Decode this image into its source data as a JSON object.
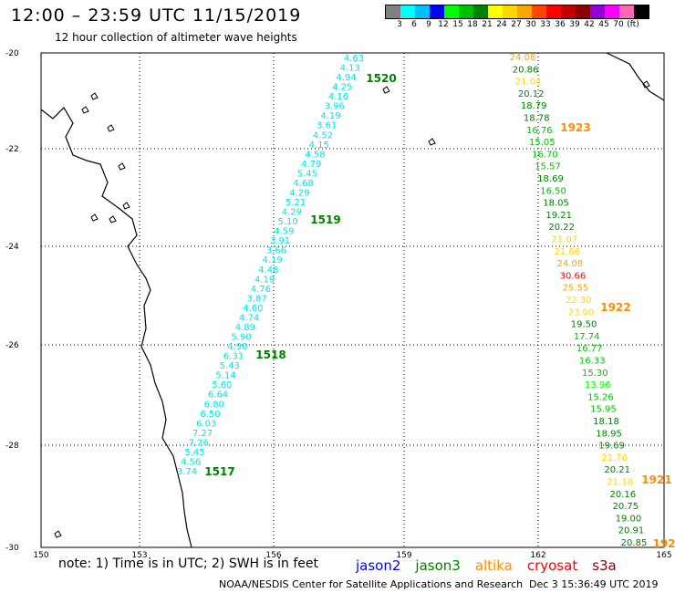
{
  "header": {
    "title": "12:00 – 23:59 UTC 11/15/2019",
    "subtitle": "12 hour collection of altimeter wave heights"
  },
  "colorbar": {
    "colors": [
      "#808080",
      "#00ffff",
      "#00bfff",
      "#0000ff",
      "#00ff00",
      "#00c000",
      "#008000",
      "#ffff00",
      "#ffd700",
      "#ffa500",
      "#ff4500",
      "#ff0000",
      "#c00000",
      "#8b0000",
      "#9400d3",
      "#ff00ff",
      "#ff69b4",
      "#000000"
    ],
    "ticks": [
      "3",
      "6",
      "9",
      "12",
      "15",
      "18",
      "21",
      "24",
      "27",
      "30",
      "33",
      "36",
      "39",
      "42",
      "45",
      "70",
      "(ft)"
    ]
  },
  "axes": {
    "lat_labels": [
      "-20",
      "-22",
      "-24",
      "-26",
      "-28",
      "-30"
    ],
    "lon_labels": [
      "150",
      "153",
      "156",
      "159",
      "162",
      "165"
    ]
  },
  "tracks": [
    {
      "id": "1517",
      "color": "#00e5e5",
      "label_color": "#008000",
      "values": [
        "4.63",
        "4.13",
        "4.94",
        "4.25",
        "4.16",
        "3.96",
        "4.19",
        "3.61",
        "4.52",
        "4.15",
        "4.58",
        "4.79",
        "5.45",
        "4.68",
        "4.29",
        "5.21",
        "4.29",
        "5.10",
        "4.59",
        "3.91",
        "3.66",
        "4.19",
        "4.48",
        "4.19",
        "4.76",
        "3.87",
        "4.60",
        "4.74",
        "4.89",
        "5.90",
        "4.90",
        "6.31",
        "5.43",
        "5.14",
        "5.60",
        "6.64",
        "6.80",
        "6.50",
        "6.03",
        "7.27",
        "7.26",
        "5.45",
        "4.56",
        "3.74"
      ],
      "labels": [
        "1520",
        "1519",
        "1518",
        "1517"
      ]
    },
    {
      "id": "1921",
      "values": [
        "24.08",
        "20.86",
        "21.04",
        "20.12",
        "18.79",
        "18.78",
        "16.76",
        "15.05",
        "16.70",
        "15.57",
        "18.69",
        "16.50",
        "18.05",
        "19.21",
        "20.22",
        "21.07",
        "21.66",
        "24.08",
        "30.66",
        "25.55",
        "22.30",
        "23.00",
        "19.50",
        "17.74",
        "16.77",
        "16.33",
        "15.30",
        "13.96",
        "15.26",
        "15.95",
        "18.18",
        "18.95",
        "19.69",
        "21.76",
        "20.21",
        "21.18",
        "20.16",
        "20.75",
        "19.00",
        "20.91",
        "20.85"
      ],
      "labels": [
        "1923",
        "1922",
        "1921",
        "192"
      ]
    }
  ],
  "legend": {
    "note": "note: 1) Time is in UTC; 2) SWH is in feet",
    "missions": [
      {
        "name": "jason2",
        "color": "#0000ff"
      },
      {
        "name": "jason3",
        "color": "#008000"
      },
      {
        "name": "altika",
        "color": "#ff8c00"
      },
      {
        "name": "cryosat",
        "color": "#ff0000"
      },
      {
        "name": "s3a",
        "color": "#8b0000"
      }
    ]
  },
  "footer": {
    "credit": "NOAA/NESDIS Center for Satellite Applications and Research",
    "timestamp": "Dec  3 15:36:49 UTC 2019"
  }
}
